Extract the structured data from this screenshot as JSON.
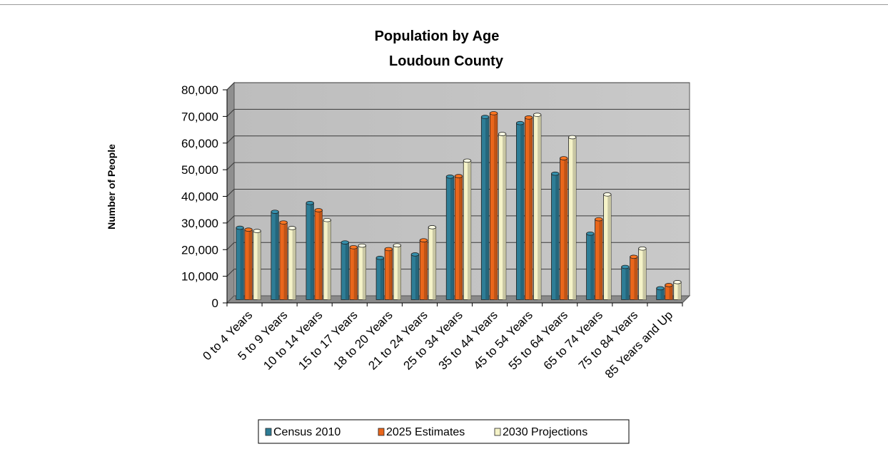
{
  "chart_data": {
    "type": "bar",
    "title": "Population by Age",
    "subtitle": "Loudoun County",
    "xlabel": "",
    "ylabel": "Number of People",
    "ylim": [
      0,
      80000
    ],
    "yticks": [
      "0",
      "10,000",
      "20,000",
      "30,000",
      "40,000",
      "50,000",
      "60,000",
      "70,000",
      "80,000"
    ],
    "grid": true,
    "legend_position": "bottom",
    "categories": [
      "0 to 4 Years",
      "5 to 9 Years",
      "10 to 14 Years",
      "15 to 17 Years",
      "18 to 20 Years",
      "21 to 24 Years",
      "25 to 34 Years",
      "35 to 44 Years",
      "45 to 54 Years",
      "55 to 64 Years",
      "65 to 74 Years",
      "75 to 84 Years",
      "85 Years and Up"
    ],
    "series": [
      {
        "name": "Census 2010",
        "color": "#2e7d96",
        "values": [
          27000,
          33000,
          36300,
          21500,
          15700,
          17000,
          46200,
          68600,
          66300,
          47300,
          24800,
          12300,
          4300
        ]
      },
      {
        "name": "2025 Estimates",
        "color": "#e9661b",
        "values": [
          26300,
          29000,
          33600,
          19700,
          19000,
          22300,
          46400,
          70000,
          68400,
          53100,
          30200,
          16100,
          5500
        ]
      },
      {
        "name": "2030 Projections",
        "color": "#f5f3c8",
        "values": [
          25800,
          26900,
          29900,
          20300,
          20400,
          27200,
          52200,
          62200,
          69400,
          61000,
          39500,
          19200,
          6600
        ]
      }
    ]
  }
}
